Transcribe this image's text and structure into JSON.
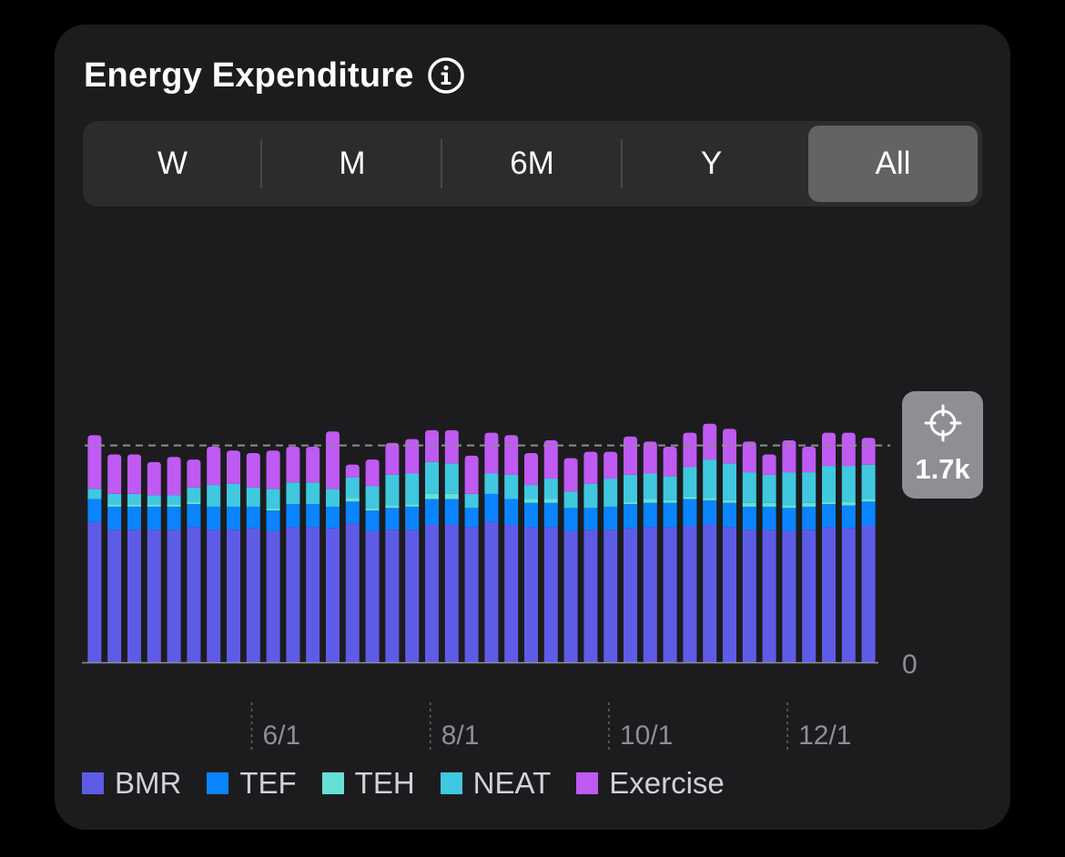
{
  "header": {
    "title": "Energy Expenditure",
    "info_icon": "info-circle-icon"
  },
  "range_tabs": [
    {
      "label": "W",
      "selected": false
    },
    {
      "label": "M",
      "selected": false
    },
    {
      "label": "6M",
      "selected": false
    },
    {
      "label": "Y",
      "selected": false
    },
    {
      "label": "All",
      "selected": true
    }
  ],
  "target": {
    "icon": "crosshair-icon",
    "value_label": "1.7k"
  },
  "colors": {
    "BMR": "#5e5ce6",
    "TEF": "#0a84ff",
    "TEH": "#66e0d5",
    "NEAT": "#3fc8e0",
    "Exercise": "#bf5af2",
    "card_background": "#1c1c1e",
    "target_badge": "#8e8e93"
  },
  "chart_data": {
    "type": "bar",
    "stacked": true,
    "x_tick_labels": [
      "6/1",
      "8/1",
      "10/1",
      "12/1"
    ],
    "x_tick_after_bar": [
      7,
      16,
      25,
      34
    ],
    "y_tick_labels": [
      "0"
    ],
    "ylim": [
      0,
      1890
    ],
    "target_line": 1700,
    "target_line_style": "dashed",
    "grid": false,
    "legend_position": "bottom",
    "series": [
      {
        "name": "BMR",
        "values": [
          1100,
          1040,
          1040,
          1040,
          1040,
          1060,
          1040,
          1040,
          1050,
          1030,
          1060,
          1060,
          1050,
          1090,
          1030,
          1040,
          1040,
          1080,
          1080,
          1060,
          1100,
          1080,
          1060,
          1060,
          1030,
          1040,
          1040,
          1050,
          1060,
          1060,
          1070,
          1080,
          1060,
          1040,
          1040,
          1030,
          1040,
          1060,
          1050,
          1070
        ]
      },
      {
        "name": "TEF",
        "values": [
          180,
          180,
          180,
          180,
          180,
          180,
          180,
          180,
          170,
          160,
          180,
          180,
          170,
          170,
          160,
          170,
          180,
          200,
          200,
          150,
          220,
          200,
          190,
          190,
          180,
          170,
          180,
          190,
          190,
          190,
          210,
          190,
          190,
          180,
          180,
          180,
          180,
          180,
          180,
          190
        ]
      },
      {
        "name": "TEH",
        "values": [
          0,
          20,
          20,
          20,
          20,
          20,
          0,
          0,
          0,
          20,
          0,
          0,
          0,
          30,
          20,
          20,
          20,
          40,
          40,
          0,
          0,
          0,
          30,
          30,
          0,
          0,
          0,
          20,
          30,
          20,
          20,
          20,
          20,
          30,
          30,
          20,
          30,
          20,
          30,
          20
        ]
      },
      {
        "name": "NEAT",
        "values": [
          80,
          80,
          80,
          70,
          70,
          110,
          170,
          180,
          150,
          150,
          170,
          170,
          140,
          160,
          170,
          240,
          240,
          250,
          240,
          110,
          160,
          190,
          110,
          160,
          130,
          190,
          220,
          210,
          200,
          190,
          230,
          300,
          290,
          240,
          220,
          260,
          240,
          280,
          280,
          270
        ]
      },
      {
        "name": "Exercise",
        "values": [
          420,
          310,
          310,
          260,
          300,
          220,
          300,
          260,
          270,
          300,
          280,
          280,
          450,
          100,
          210,
          250,
          270,
          250,
          260,
          300,
          320,
          310,
          250,
          300,
          260,
          250,
          210,
          300,
          250,
          230,
          270,
          280,
          270,
          240,
          160,
          250,
          200,
          260,
          260,
          210
        ]
      }
    ]
  }
}
